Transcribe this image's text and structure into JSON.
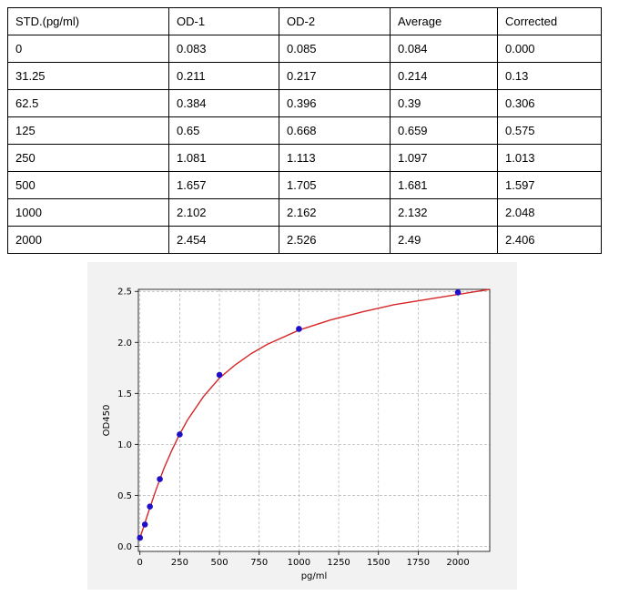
{
  "table": {
    "headers": [
      "STD.(pg/ml)",
      "OD-1",
      "OD-2",
      "Average",
      "Corrected"
    ],
    "rows": [
      [
        "0",
        "0.083",
        "0.085",
        "0.084",
        "0.000"
      ],
      [
        "31.25",
        "0.211",
        "0.217",
        "0.214",
        "0.13"
      ],
      [
        "62.5",
        "0.384",
        "0.396",
        "0.39",
        "0.306"
      ],
      [
        "125",
        "0.65",
        "0.668",
        "0.659",
        "0.575"
      ],
      [
        "250",
        "1.081",
        "1.113",
        "1.097",
        "1.013"
      ],
      [
        "500",
        "1.657",
        "1.705",
        "1.681",
        "1.597"
      ],
      [
        "1000",
        "2.102",
        "2.162",
        "2.132",
        "2.048"
      ],
      [
        "2000",
        "2.454",
        "2.526",
        "2.49",
        "2.406"
      ]
    ]
  },
  "chart_data": {
    "type": "scatter",
    "title": "",
    "xlabel": "pg/ml",
    "ylabel": "OD450",
    "xlim": [
      -10,
      2200
    ],
    "ylim": [
      -0.05,
      2.52
    ],
    "xticks": [
      0,
      250,
      500,
      750,
      1000,
      1250,
      1500,
      1750,
      2000
    ],
    "yticks": [
      0.0,
      0.5,
      1.0,
      1.5,
      2.0,
      2.5
    ],
    "grid": true,
    "series": [
      {
        "type": "scatter",
        "color": "#1f10c8",
        "x": [
          0,
          31.25,
          62.5,
          125,
          250,
          500,
          1000,
          2000
        ],
        "y": [
          0.084,
          0.214,
          0.39,
          0.659,
          1.097,
          1.681,
          2.132,
          2.49
        ]
      },
      {
        "type": "line",
        "color": "#d62728",
        "x": [
          0,
          25,
          50,
          100,
          150,
          200,
          250,
          300,
          400,
          500,
          600,
          700,
          800,
          1000,
          1200,
          1400,
          1600,
          1800,
          2000,
          2200
        ],
        "y": [
          0.08,
          0.2,
          0.32,
          0.55,
          0.76,
          0.94,
          1.1,
          1.24,
          1.47,
          1.65,
          1.78,
          1.89,
          1.98,
          2.12,
          2.22,
          2.3,
          2.37,
          2.42,
          2.47,
          2.52
        ]
      }
    ]
  }
}
